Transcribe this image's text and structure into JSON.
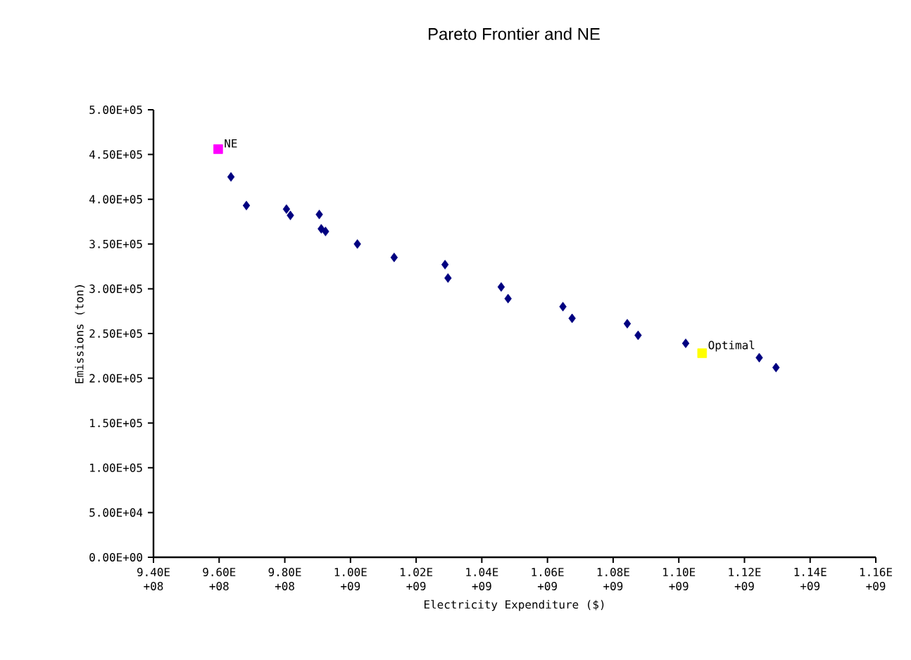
{
  "chart_data": {
    "type": "scatter",
    "title": "Pareto Frontier and NE",
    "xlabel": "Electricity Expenditure ($)",
    "ylabel": "Emissions (ton)",
    "xlim": [
      940000000,
      1160000000
    ],
    "xticks": [
      {
        "value": 940000000,
        "label": "9.40E+08"
      },
      {
        "value": 960000000,
        "label": "9.60E+08"
      },
      {
        "value": 980000000,
        "label": "9.80E+08"
      },
      {
        "value": 1000000000,
        "label": "1.00E+09"
      },
      {
        "value": 1020000000,
        "label": "1.02E+09"
      },
      {
        "value": 1040000000,
        "label": "1.04E+09"
      },
      {
        "value": 1060000000,
        "label": "1.06E+09"
      },
      {
        "value": 1080000000,
        "label": "1.08E+09"
      },
      {
        "value": 1100000000,
        "label": "1.10E+09"
      },
      {
        "value": 1120000000,
        "label": "1.12E+09"
      },
      {
        "value": 1140000000,
        "label": "1.14E+09"
      },
      {
        "value": 1160000000,
        "label": "1.16E+09"
      }
    ],
    "ylim": [
      0,
      500000
    ],
    "yticks": [
      {
        "value": 0,
        "label": "0.00E+00"
      },
      {
        "value": 50000,
        "label": "5.00E+04"
      },
      {
        "value": 100000,
        "label": "1.00E+05"
      },
      {
        "value": 150000,
        "label": "1.50E+05"
      },
      {
        "value": 200000,
        "label": "2.00E+05"
      },
      {
        "value": 250000,
        "label": "2.50E+05"
      },
      {
        "value": 300000,
        "label": "3.00E+05"
      },
      {
        "value": 350000,
        "label": "3.50E+05"
      },
      {
        "value": 400000,
        "label": "4.00E+05"
      },
      {
        "value": 450000,
        "label": "4.50E+05"
      },
      {
        "value": 500000,
        "label": "5.00E+05"
      }
    ],
    "grid": false,
    "marker": "diamond",
    "series": [
      {
        "color": "#000080",
        "x": [
          963600000,
          968300000,
          980500000,
          981700000,
          990500000,
          991100000,
          992400000,
          1002100000,
          1013300000,
          1028800000,
          1029700000,
          1045900000,
          1048000000,
          1064700000,
          1067500000,
          1084300000,
          1087600000,
          1102100000,
          1124500000,
          1129600000
        ],
        "values": [
          425000,
          393000,
          389000,
          382000,
          383000,
          367000,
          364000,
          350000,
          335000,
          327000,
          312000,
          302000,
          289000,
          280000,
          267000,
          261000,
          248000,
          239000,
          223000,
          212000
        ]
      },
      {
        "color": "#ff00ff",
        "marker": "square",
        "x": [
          959700000
        ],
        "values": [
          456000
        ]
      },
      {
        "color": "#ffff00",
        "marker": "square",
        "x": [
          1107100000
        ],
        "values": [
          228000
        ]
      }
    ],
    "annotations": [
      {
        "text": "NE",
        "x": 959700000,
        "y": 456000
      },
      {
        "text": "Optimal",
        "x": 1107100000,
        "y": 228000
      }
    ]
  }
}
